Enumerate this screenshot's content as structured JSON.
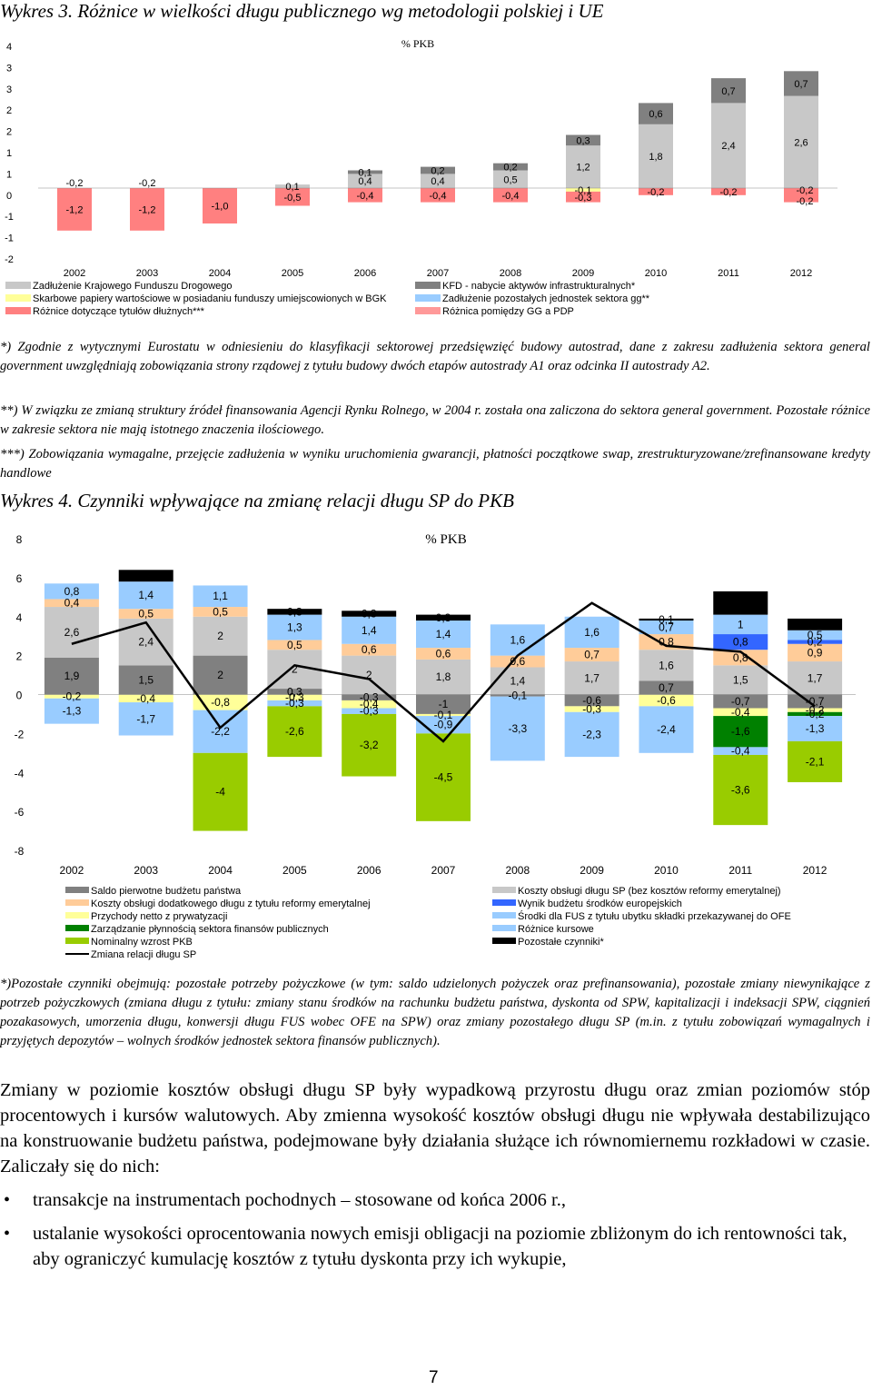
{
  "chart3": {
    "heading": "Wykres 3. Różnice w wielkości długu publicznego wg metodologii polskiej i UE",
    "unit_label": "% PKB",
    "chart_data": {
      "type": "bar",
      "stacked": true,
      "categories": [
        "2002",
        "2003",
        "2004",
        "2005",
        "2006",
        "2007",
        "2008",
        "2009",
        "2010",
        "2011",
        "2012"
      ],
      "y_ticks": [
        "4",
        "3",
        "3",
        "2",
        "2",
        "1",
        "1",
        "0",
        "-1",
        "-1",
        "-2"
      ],
      "ylim": [
        -2,
        4
      ],
      "series": [
        {
          "name": "Zadłużenie Krajowego Funduszu Drogowego",
          "color": "#c8c8c8",
          "values": [
            0,
            0,
            0,
            0.1,
            0.4,
            0.4,
            0.5,
            1.2,
            1.8,
            2.4,
            2.6
          ],
          "labels": [
            "",
            "",
            "",
            "0,1",
            "0,4",
            "0,4",
            "0,5",
            "1,2",
            "1,8",
            "2,4",
            "2,6"
          ]
        },
        {
          "name": "KFD - nabycie aktywów infrastrukturalnych*",
          "color": "#808080",
          "values": [
            0,
            0,
            0,
            0,
            0.1,
            0.2,
            0.2,
            0.3,
            0.6,
            0.7,
            0.7
          ],
          "labels": [
            "",
            "",
            "",
            "",
            "0,1",
            "0,2",
            "0,2",
            "0,3",
            "0,6",
            "0,7",
            "0,7"
          ]
        },
        {
          "name": "Skarbowe papiery wartościowe w posiadaniu funduszy umiejscowionych w BGK",
          "color": "#ffff99",
          "values": [
            0,
            0,
            0,
            0,
            0,
            0,
            0,
            -0.1,
            0,
            0,
            0
          ],
          "labels": [
            "",
            "",
            "",
            "",
            "",
            "",
            "",
            "-0,1",
            "",
            "",
            ""
          ]
        },
        {
          "name": "Zadłużenie pozostałych jednostek sektora gg**",
          "color": "#99ccff",
          "values": [
            0,
            0,
            0,
            0,
            0,
            0,
            0,
            0,
            0,
            0,
            0
          ],
          "labels": [
            "",
            "",
            "",
            "",
            "",
            "",
            "",
            "",
            "",
            "",
            ""
          ]
        },
        {
          "name": "Różnice dotyczące tytułów dłużnych***",
          "color": "#ff8080",
          "values": [
            -1.2,
            -1.2,
            -1.0,
            -0.5,
            -0.4,
            -0.4,
            -0.4,
            -0.3,
            -0.2,
            -0.2,
            -0.4
          ],
          "labels": [
            "-1,2",
            "-1,2",
            "-1,0",
            "-0,5",
            "-0,4",
            "-0,4",
            "-0,4",
            "-0,3",
            "-0,2",
            "-0,2",
            "-0,2|-0,2"
          ]
        },
        {
          "name": "Różnica pomiędzy GG a PDP",
          "color": "#ff9999",
          "values": [
            -0.2,
            -0.2,
            null,
            null,
            null,
            null,
            null,
            null,
            null,
            null,
            null
          ],
          "labels": [
            "-0,2",
            "-0,2",
            "",
            "",
            "",
            "",
            "",
            "",
            "",
            "",
            ""
          ]
        }
      ]
    }
  },
  "notes3": [
    "*) Zgodnie z wytycznymi Eurostatu w odniesieniu do klasyfikacji sektorowej przedsięwzięć budowy autostrad, dane z zakresu zadłużenia sektora general government uwzględniają zobowiązania strony rządowej z tytułu budowy dwóch etapów autostrady A1 oraz odcinka II autostrady A2.",
    "**) W związku ze zmianą struktury źródeł finansowania Agencji Rynku Rolnego, w 2004 r. została ona zaliczona do sektora general government. Pozostałe różnice w zakresie sektora nie mają istotnego znaczenia ilościowego.",
    "***) Zobowiązania wymagalne, przejęcie zadłużenia w wyniku uruchomienia gwarancji, płatności początkowe swap, zrestrukturyzowane/zrefinansowane kredyty handlowe"
  ],
  "chart4": {
    "heading": "Wykres 4. Czynniki wpływające na zmianę relacji długu SP do PKB",
    "unit_label": "% PKB",
    "chart_data": {
      "type": "bar",
      "stacked": true,
      "categories": [
        "2002",
        "2003",
        "2004",
        "2005",
        "2006",
        "2007",
        "2008",
        "2009",
        "2010",
        "2011",
        "2012"
      ],
      "y_ticks": [
        "8",
        "6",
        "4",
        "2",
        "0",
        "-2",
        "-4",
        "-6",
        "-8"
      ],
      "ylim": [
        -8,
        8
      ],
      "series": [
        {
          "name": "Saldo pierwotne budżetu państwa",
          "color": "#808080",
          "values": [
            1.9,
            1.5,
            2.0,
            0.3,
            -0.3,
            -1.0,
            -0.1,
            -0.6,
            0.7,
            -0.7,
            -0.7
          ]
        },
        {
          "name": "Koszty obsługi długu SP (bez kosztów reformy emerytalnej)",
          "color": "#c8c8c8",
          "values": [
            2.6,
            2.4,
            2.0,
            2.0,
            2.0,
            1.8,
            1.4,
            1.7,
            1.6,
            1.5,
            1.7
          ]
        },
        {
          "name": "Koszty obsługi dodatkowego długu z tytułu reformy emerytalnej",
          "color": "#ffcc99",
          "values": [
            0.4,
            0.5,
            0.5,
            0.5,
            0.6,
            0.6,
            0.6,
            0.7,
            0.8,
            0.8,
            0.9
          ]
        },
        {
          "name": "Wynik budżetu środków europejskich",
          "color": "#3366ff",
          "values": [
            null,
            null,
            null,
            null,
            null,
            null,
            null,
            null,
            null,
            0.8,
            0.2
          ]
        },
        {
          "name": "Środki dla FUS z tytułu ubytku składki przekazywanej do OFE",
          "color": "#99ccff",
          "values": [
            0.8,
            1.4,
            1.1,
            1.3,
            1.4,
            1.4,
            1.6,
            1.6,
            0.7,
            1.0,
            0.5
          ]
        },
        {
          "name": "Przychody netto z prywatyzacji",
          "color": "#ffff99",
          "values": [
            -0.2,
            -0.4,
            -0.8,
            -0.3,
            -0.4,
            -0.1,
            null,
            -0.3,
            -0.6,
            -0.4,
            -0.2
          ]
        },
        {
          "name": "Zarządzanie płynnością sektora finansów publicznych",
          "color": "#008000",
          "values": [
            null,
            null,
            null,
            null,
            null,
            null,
            null,
            null,
            null,
            -1.6,
            -0.2
          ]
        },
        {
          "name": "Różnice kursowe",
          "color": "#99ccff",
          "values": [
            -1.3,
            -1.7,
            -2.2,
            -0.3,
            -0.3,
            -0.9,
            -3.3,
            -2.3,
            -2.4,
            -0.4,
            -1.3
          ]
        },
        {
          "name": "Nominalny wzrost PKB",
          "color": "#99cc00",
          "values": [
            null,
            null,
            -4.0,
            -2.6,
            -3.2,
            -4.5,
            null,
            null,
            null,
            -3.6,
            -2.1
          ]
        },
        {
          "name": "Pozostałe czynniki*",
          "color": "#000000",
          "values": [
            null,
            0.6,
            null,
            0.3,
            0.3,
            0.3,
            null,
            null,
            0.1,
            1.2,
            0.6
          ]
        },
        {
          "name": "Zmiana relacji długu SP",
          "color": "#000000",
          "type": "line",
          "values": [
            2.6,
            3.7,
            -1.7,
            1.5,
            0.8,
            -2.4,
            2.0,
            4.7,
            2.5,
            2.2,
            -0.6
          ]
        }
      ]
    }
  },
  "note4": "*)Pozostałe czynniki obejmują: pozostałe potrzeby pożyczkowe (w tym: saldo udzielonych pożyczek oraz prefinansowania), pozostałe zmiany niewynikające z potrzeb pożyczkowych (zmiana długu z tytułu: zmiany stanu środków na rachunku budżetu państwa, dyskonta od SPW, kapitalizacji i indeksacji SPW, ciągnień pozakasowych, umorzenia długu, konwersji długu FUS wobec OFE na SPW) oraz zmiany pozostałego długu SP (m.in. z tytułu zobowiązań wymagalnych i przyjętych depozytów – wolnych środków jednostek sektora finansów publicznych).",
  "body_paragraph": "Zmiany w poziomie kosztów obsługi długu SP były wypadkową przyrostu długu oraz zmian poziomów stóp procentowych i kursów walutowych. Aby zmienna wysokość kosztów obsługi długu nie wpływała destabilizująco na konstruowanie budżetu państwa, podejmowane były działania służące ich równomiernemu rozkładowi w czasie. Zaliczały się do nich:",
  "bullets": [
    "transakcje na instrumentach pochodnych – stosowane od końca 2006 r.,",
    "ustalanie wysokości oprocentowania nowych emisji obligacji na poziomie zbliżonym do ich rentowności tak, aby ograniczyć kumulację kosztów z tytułu dyskonta przy ich wykupie,"
  ],
  "bullet_symbol": "•",
  "page_number": "7"
}
